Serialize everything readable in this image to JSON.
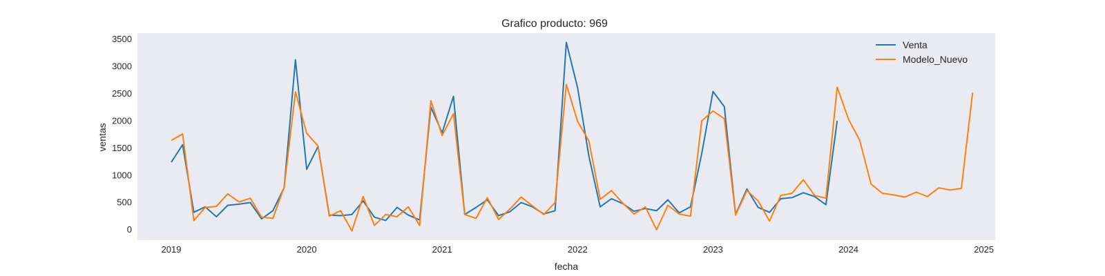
{
  "chart_data": {
    "type": "line",
    "title": "Grafico producto: 969",
    "xlabel": "fecha",
    "ylabel": "ventas",
    "xlim": [
      "2018-10",
      "2025-02"
    ],
    "ylim": [
      -200,
      3600
    ],
    "x_ticks": [
      "2019",
      "2020",
      "2021",
      "2022",
      "2023",
      "2024",
      "2025"
    ],
    "y_ticks": [
      0,
      500,
      1000,
      1500,
      2000,
      2500,
      3000,
      3500
    ],
    "grid": false,
    "legend_position": "top-right",
    "plot_background": "#eaeaf2",
    "series": [
      {
        "name": "Venta",
        "color": "#1f77b4",
        "x": [
          "2019-01",
          "2019-02",
          "2019-03",
          "2019-04",
          "2019-05",
          "2019-06",
          "2019-07",
          "2019-08",
          "2019-09",
          "2019-10",
          "2019-11",
          "2019-12",
          "2020-01",
          "2020-02",
          "2020-03",
          "2020-04",
          "2020-05",
          "2020-06",
          "2020-07",
          "2020-08",
          "2020-09",
          "2020-10",
          "2020-11",
          "2020-12",
          "2021-01",
          "2021-02",
          "2021-03",
          "2021-04",
          "2021-05",
          "2021-06",
          "2021-07",
          "2021-08",
          "2021-09",
          "2021-10",
          "2021-11",
          "2021-12",
          "2022-01",
          "2022-02",
          "2022-03",
          "2022-04",
          "2022-05",
          "2022-06",
          "2022-07",
          "2022-08",
          "2022-09",
          "2022-10",
          "2022-11",
          "2022-12",
          "2023-01",
          "2023-02",
          "2023-03",
          "2023-04",
          "2023-05",
          "2023-06",
          "2023-07",
          "2023-08",
          "2023-09",
          "2023-10",
          "2023-11",
          "2023-12"
        ],
        "values": [
          1230,
          1550,
          310,
          410,
          230,
          440,
          460,
          490,
          190,
          340,
          760,
          3110,
          1100,
          1520,
          260,
          250,
          270,
          520,
          220,
          160,
          400,
          260,
          170,
          2240,
          1770,
          2440,
          270,
          400,
          540,
          250,
          320,
          490,
          410,
          280,
          340,
          3430,
          2600,
          1340,
          410,
          560,
          470,
          330,
          380,
          340,
          540,
          300,
          410,
          1390,
          2530,
          2250,
          270,
          740,
          400,
          310,
          560,
          580,
          670,
          600,
          450,
          1990
        ]
      },
      {
        "name": "Modelo_Nuevo",
        "color": "#ff7f0e",
        "x": [
          "2019-01",
          "2019-02",
          "2019-03",
          "2019-04",
          "2019-05",
          "2019-06",
          "2019-07",
          "2019-08",
          "2019-09",
          "2019-10",
          "2019-11",
          "2019-12",
          "2020-01",
          "2020-02",
          "2020-03",
          "2020-04",
          "2020-05",
          "2020-06",
          "2020-07",
          "2020-08",
          "2020-09",
          "2020-10",
          "2020-11",
          "2020-12",
          "2021-01",
          "2021-02",
          "2021-03",
          "2021-04",
          "2021-05",
          "2021-06",
          "2021-07",
          "2021-08",
          "2021-09",
          "2021-10",
          "2021-11",
          "2021-12",
          "2022-01",
          "2022-02",
          "2022-03",
          "2022-04",
          "2022-05",
          "2022-06",
          "2022-07",
          "2022-08",
          "2022-09",
          "2022-10",
          "2022-11",
          "2022-12",
          "2023-01",
          "2023-02",
          "2023-03",
          "2023-04",
          "2023-05",
          "2023-06",
          "2023-07",
          "2023-08",
          "2023-09",
          "2023-10",
          "2023-11",
          "2023-12",
          "2024-01",
          "2024-02",
          "2024-03",
          "2024-04",
          "2024-05",
          "2024-06",
          "2024-07",
          "2024-08",
          "2024-09",
          "2024-10",
          "2024-11",
          "2024-12"
        ],
        "values": [
          1630,
          1750,
          160,
          400,
          420,
          650,
          500,
          570,
          220,
          200,
          770,
          2520,
          1760,
          1530,
          240,
          340,
          -30,
          600,
          70,
          270,
          230,
          410,
          70,
          2360,
          1720,
          2120,
          270,
          200,
          580,
          180,
          370,
          590,
          430,
          270,
          490,
          2660,
          1980,
          1620,
          550,
          710,
          480,
          280,
          410,
          -10,
          440,
          280,
          240,
          1990,
          2170,
          2030,
          260,
          710,
          520,
          150,
          620,
          660,
          910,
          620,
          570,
          2610,
          2020,
          1630,
          830,
          660,
          630,
          590,
          680,
          600,
          760,
          720,
          750,
          2510
        ]
      }
    ]
  }
}
